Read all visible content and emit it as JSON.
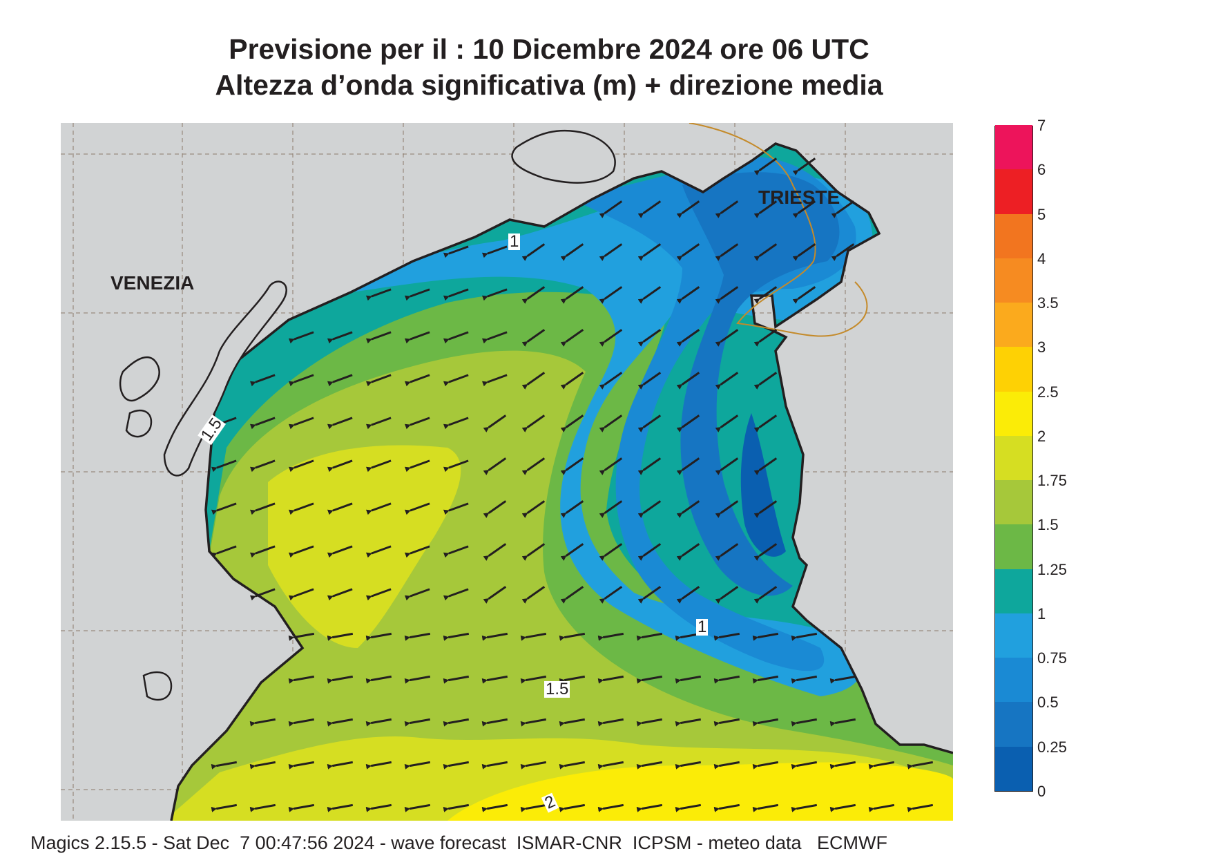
{
  "header": {
    "line1": "Previsione per il  :  10 Dicembre  2024   ore 06 UTC",
    "line2": "Altezza d’onda significativa (m) + direzione media"
  },
  "map": {
    "cities": {
      "venezia": "VENEZIA",
      "trieste": "TRIESTE"
    },
    "contour_labels": [
      "1",
      "1.5",
      "1",
      "1.5",
      "2"
    ],
    "wave_direction": "toward west-southwest"
  },
  "legend": {
    "ticks": [
      "0",
      "0.25",
      "0.5",
      "0.75",
      "1",
      "1.25",
      "1.5",
      "1.75",
      "2",
      "2.5",
      "3",
      "3.5",
      "4",
      "5",
      "6",
      "7"
    ],
    "colors": [
      "#0a5fb0",
      "#1675c2",
      "#1a8ad4",
      "#21a0de",
      "#0ea79c",
      "#6cb846",
      "#a6c83a",
      "#d6de22",
      "#fbec07",
      "#fed104",
      "#fbaa1d",
      "#f68b21",
      "#f2751f",
      "#ed1f24",
      "#ed145b"
    ]
  },
  "footer": "Magics 2.15.5 - Sat Dec  7 00:47:56 2024 - wave forecast  ISMAR-CNR  ICPSM - meteo data   ECMWF"
}
